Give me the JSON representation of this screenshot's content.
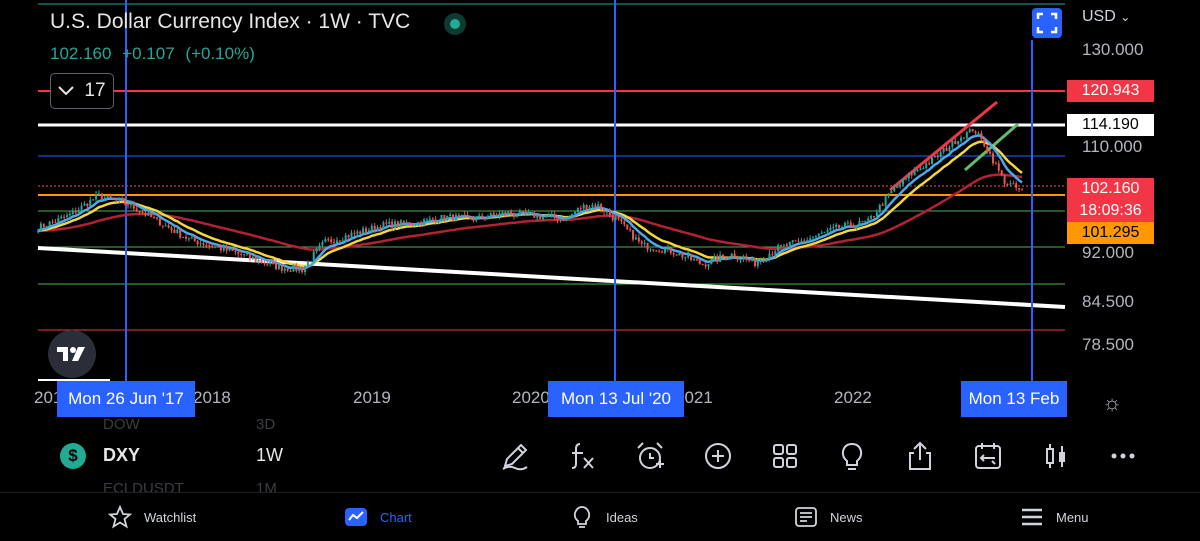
{
  "header": {
    "title": "U.S. Dollar Currency Index · 1W · TVC",
    "last_price": "102.160",
    "change": "+0.107",
    "change_pct": "(+0.10%)",
    "interval_count": "17",
    "currency": "USD"
  },
  "price_axis": {
    "labels": [
      "130.000",
      "110.000",
      "92.000",
      "84.500",
      "78.500"
    ],
    "tags": [
      {
        "text": "120.943",
        "bg": "#f23645",
        "color": "#ffffff"
      },
      {
        "text": "114.190",
        "bg": "#ffffff",
        "color": "#000000"
      },
      {
        "text": "102.160",
        "bg": "#f23645",
        "color": "#ffffff"
      },
      {
        "text": "18:09:36",
        "bg": "#f23645",
        "color": "#ffffff"
      },
      {
        "text": "101.295",
        "bg": "#ff9800",
        "color": "#000000"
      }
    ]
  },
  "time_axis": {
    "labels": [
      "201",
      "2018",
      "2019",
      "2020",
      "2021",
      "2022"
    ],
    "markers": [
      "Mon 26 Jun '17",
      "Mon 13 Jul '20",
      "Mon 13 Feb"
    ]
  },
  "toolbar": {
    "ghost_above": [
      "DOW",
      "3D"
    ],
    "ghost_below": [
      "ECLDUSDT",
      "1M"
    ],
    "symbol": "DXY",
    "timeframe": "1W",
    "tools": [
      "draw-icon",
      "indicators-icon",
      "alert-icon",
      "add-icon",
      "layouts-icon",
      "ideas-bulb-icon",
      "share-icon",
      "replay-icon",
      "candles-icon",
      "more-icon"
    ]
  },
  "navbar": {
    "items": [
      {
        "label": "Watchlist",
        "icon": "star-icon"
      },
      {
        "label": "Chart",
        "icon": "chart-icon",
        "active": true
      },
      {
        "label": "Ideas",
        "icon": "bulb-icon"
      },
      {
        "label": "News",
        "icon": "news-icon"
      },
      {
        "label": "Menu",
        "icon": "menu-icon"
      }
    ]
  },
  "colors": {
    "up": "#26a69a",
    "down": "#ef5350",
    "accent": "#2962ff",
    "ema_blue": "#4aa8f0",
    "ema_yellow": "#f5d63d",
    "ema_red": "#b22234"
  },
  "chart_data": {
    "type": "line",
    "symbol": "DXY",
    "timeframe": "1W",
    "x": [
      2016.6,
      2016.8,
      2017.0,
      2017.2,
      2017.4,
      2017.6,
      2017.8,
      2018.0,
      2018.2,
      2018.35,
      2018.5,
      2018.7,
      2018.9,
      2019.1,
      2019.3,
      2019.5,
      2019.7,
      2019.9,
      2020.1,
      2020.2,
      2020.3,
      2020.45,
      2020.6,
      2020.8,
      2021.0,
      2021.2,
      2021.35,
      2021.5,
      2021.7,
      2021.9,
      2022.1,
      2022.25,
      2022.4,
      2022.55,
      2022.7,
      2022.8,
      2022.9,
      2023.0,
      2023.12
    ],
    "close": [
      96.0,
      98.0,
      101.5,
      100.0,
      97.0,
      94.0,
      92.5,
      91.0,
      89.5,
      89.2,
      93.5,
      95.0,
      96.5,
      96.8,
      97.8,
      97.5,
      98.5,
      98.0,
      97.5,
      99.5,
      100.0,
      97.0,
      93.0,
      92.0,
      90.0,
      91.5,
      90.2,
      92.5,
      94.0,
      96.0,
      97.0,
      102.0,
      105.5,
      108.0,
      111.5,
      113.5,
      109.0,
      104.0,
      102.16
    ],
    "horizontal_levels": [
      120.943,
      114.19,
      101.295
    ],
    "ylim": [
      76,
      132
    ]
  }
}
